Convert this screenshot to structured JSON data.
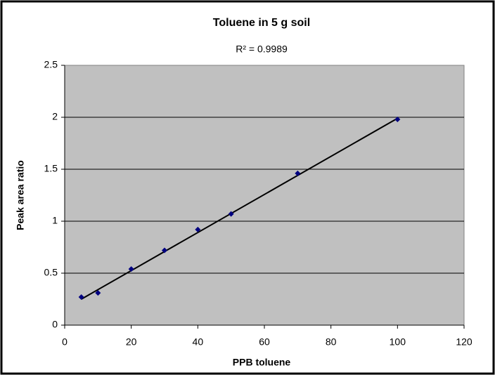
{
  "chart_data": {
    "type": "scatter",
    "title": "Toluene in 5 g soil",
    "annotation": "R² = 0.9989",
    "x_label": "PPB toluene",
    "y_label": "Peak area ratio",
    "series": [
      {
        "x": [
          5,
          10,
          20,
          30,
          40,
          50,
          70,
          100
        ],
        "values": [
          0.27,
          0.31,
          0.54,
          0.72,
          0.92,
          1.07,
          1.46,
          1.98
        ],
        "color": "#000080"
      }
    ],
    "trendline": {
      "x": [
        5,
        100
      ],
      "values": [
        0.25,
        1.99
      ],
      "color": "#000000"
    },
    "xlim": [
      0,
      120
    ],
    "xticks": [
      0,
      20,
      40,
      60,
      80,
      100,
      120
    ],
    "ylim": [
      0,
      2.5
    ],
    "yticks": [
      0,
      0.5,
      1,
      1.5,
      2,
      2.5
    ],
    "grid": true,
    "plot_background": "#c0c0c0"
  }
}
